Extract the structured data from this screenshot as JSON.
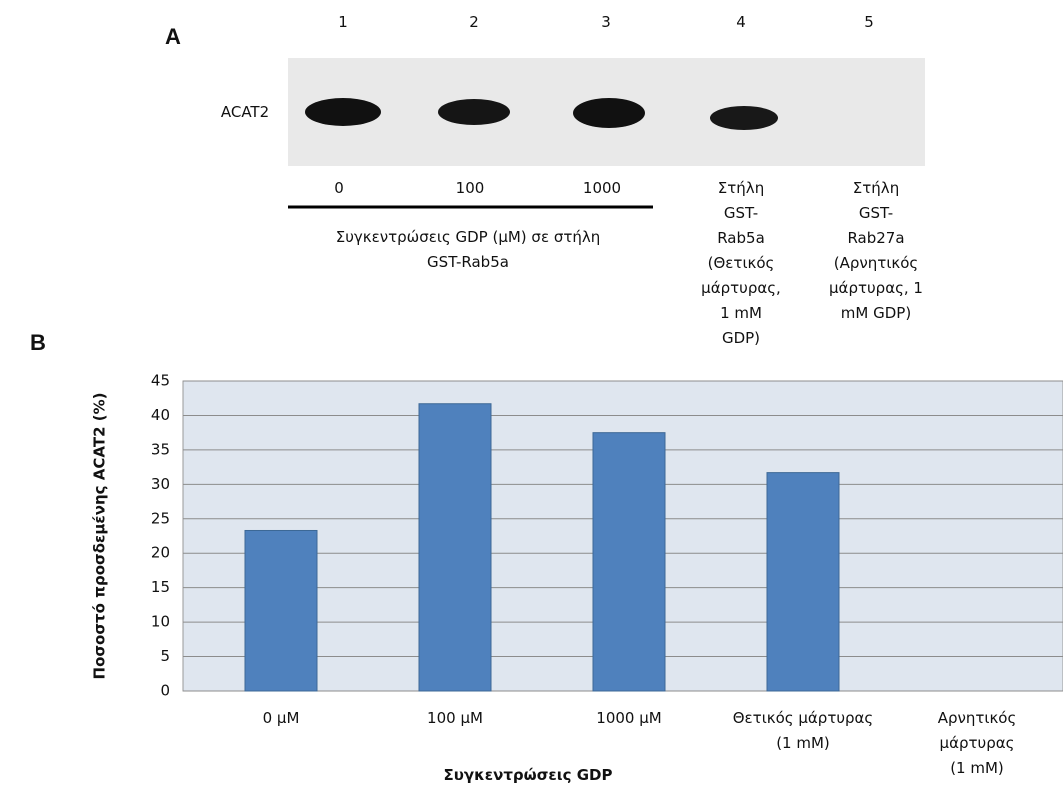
{
  "panel_a": {
    "label": "A",
    "lanes": [
      "1",
      "2",
      "3",
      "4",
      "5"
    ],
    "band_label": "ACAT2",
    "concentrations": [
      "0",
      "100",
      "1000"
    ],
    "group_label": "Συγκεντρώσεις GDP (μΜ) σε στήλη\nGST-Rab5a",
    "lane4_label": "Στήλη\nGST-\nRab5a\n(Θετικός\nμάρτυρας,\n1 mM\nGDP)",
    "lane5_label": "Στήλη\nGST-\nRab27a\n(Αρνητικός\nμάρτυρας, 1\nmM GDP)"
  },
  "chart_data": {
    "type": "bar",
    "panel_label": "B",
    "y_label": "Ποσοστό προσδεμένης ACAT2 (%)",
    "x_label": "Συγκεντρώσεις GDP",
    "categories": [
      "0 μΜ",
      "100 μΜ",
      "1000 μΜ",
      "Θετικός μάρτυρας\n(1 mM)",
      "Αρνητικός\nμάρτυρας (1 mM)"
    ],
    "values": [
      23.3,
      41.7,
      37.5,
      31.7,
      0
    ],
    "color": "#4f81bd",
    "ylim": [
      0,
      45
    ],
    "yticks": [
      0,
      5,
      10,
      15,
      20,
      25,
      30,
      35,
      40,
      45
    ],
    "grid": true
  }
}
